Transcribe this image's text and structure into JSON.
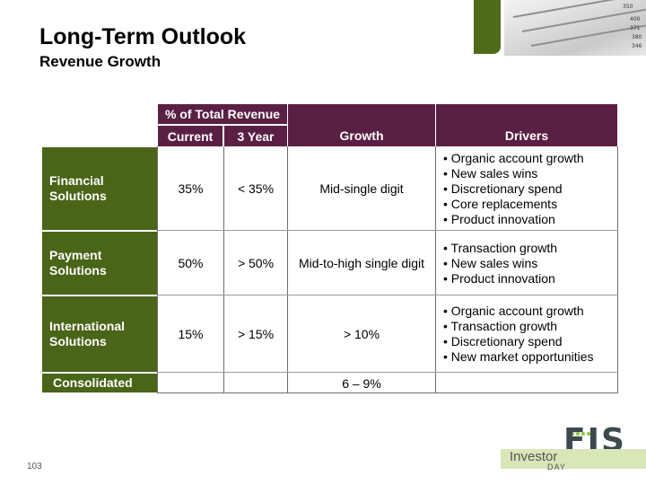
{
  "slide": {
    "title": "Long-Term Outlook",
    "subtitle": "Revenue Growth",
    "page_number": "103"
  },
  "photo": {
    "numbers": [
      "350",
      "400",
      "371",
      "380",
      "346"
    ]
  },
  "table": {
    "header": {
      "pct_group": "% of Total Revenue",
      "current": "Current",
      "three_year": "3 Year",
      "growth": "Growth",
      "drivers": "Drivers"
    },
    "rows": [
      {
        "label_line1": "Financial",
        "label_line2": "Solutions",
        "current": "35%",
        "three_year": "< 35%",
        "growth": "Mid-single digit",
        "drivers": [
          "Organic account growth",
          "New sales wins",
          "Discretionary spend",
          "Core replacements",
          "Product innovation"
        ]
      },
      {
        "label_line1": "Payment",
        "label_line2": "Solutions",
        "current": "50%",
        "three_year": "> 50%",
        "growth": "Mid-to-high single digit",
        "drivers": [
          "Transaction growth",
          "New sales wins",
          "Product innovation"
        ]
      },
      {
        "label_line1": "International",
        "label_line2": "Solutions",
        "current": "15%",
        "three_year": "> 15%",
        "growth": "> 10%",
        "drivers": [
          "Organic account growth",
          "Transaction growth",
          "Discretionary spend",
          "New market opportunities"
        ]
      }
    ],
    "consolidated": {
      "label": "Consolidated",
      "growth": "6 – 9%"
    }
  },
  "branding": {
    "logo": "FIS",
    "investor": "Investor",
    "day": "DAY"
  },
  "colors": {
    "header_purple": "#5a2044",
    "row_green": "#4a6418"
  }
}
